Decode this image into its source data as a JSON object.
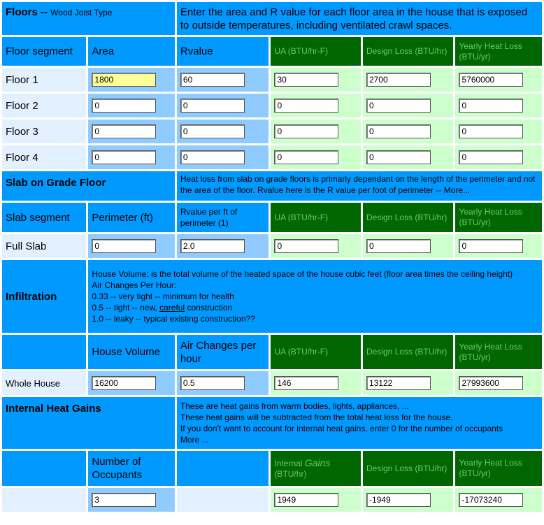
{
  "floors": {
    "title": "Floors --",
    "subtitle": "Wood Joist Type",
    "description": "Enter the area and R value for each floor area in the house that is exposed to outside temperatures, including ventilated crawl spaces.",
    "headers": [
      "Floor segment",
      "Area",
      "Rvalue",
      "UA (BTU/hr-F)",
      "Design Loss (BTU/hr)",
      "Yearly Heat Loss (BTU/yr)"
    ],
    "rows": [
      {
        "label": "Floor 1",
        "area": "1800",
        "rvalue": "60",
        "ua": "30",
        "design": "2700",
        "yearly": "5760000"
      },
      {
        "label": "Floor 2",
        "area": "0",
        "rvalue": "0",
        "ua": "0",
        "design": "0",
        "yearly": "0"
      },
      {
        "label": "Floor 3",
        "area": "0",
        "rvalue": "0",
        "ua": "0",
        "design": "0",
        "yearly": "0"
      },
      {
        "label": "Floor 4",
        "area": "0",
        "rvalue": "0",
        "ua": "0",
        "design": "0",
        "yearly": "0"
      }
    ]
  },
  "slab": {
    "title": "Slab on Grade Floor",
    "description": "Heat loss from slab on grade floors is primarly dependant on the length of the perimeter and not the area of the floor.  Rvalue here is the R value per foot of perimeter -- More...",
    "headers": [
      "Slab segment",
      "Perimeter (ft)",
      "Rvalue per ft of perimeter (1)",
      "UA (BTU/hr-F)",
      "Design Loss (BTU/hr)",
      "Yearly Heat Loss (BTU/yr)"
    ],
    "row": {
      "label": "Full Slab",
      "perimeter": "0",
      "rvalue": "2.0",
      "ua": "0",
      "design": "0",
      "yearly": "0"
    }
  },
  "infiltration": {
    "title": "Infiltration",
    "desc_line1": "House Volume: is the total volume of the heated space of the house cubic feet (floor area times the ceiling height)",
    "desc_line2": "Air Changes Per Hour:",
    "desc_line3": "0.33 -- very tight -- minimum for health",
    "desc_line4a": "0.5 -- tight --  new, ",
    "desc_line4_link": "careful",
    "desc_line4b": " construction",
    "desc_line5": "1.0 -- leaky -- typical existing construction??",
    "headers": [
      "House Volume",
      "Air Changes per hour",
      "UA (BTU/hr-F)",
      "Design Loss (BTU/hr)",
      "Yearly Heat Loss (BTU/yr)"
    ],
    "row": {
      "label": "Whole House",
      "volume": "16200",
      "ach": "0.5",
      "ua": "146",
      "design": "13122",
      "yearly": "27993600"
    }
  },
  "internal": {
    "title": "Internal Heat Gains",
    "desc_line1": "These are heat gains from warm bodies, lights, appliances, ...",
    "desc_line2": "These heat gains will be subtracted from the total heat loss for the house.",
    "desc_line3": "If you don't want to account for internal heat gains, enter 0 for the number of occupants",
    "desc_line4": "More ...",
    "headers": {
      "occupants": "Number of Occupants",
      "gains_a": "Internal ",
      "gains_b": "Gains",
      "gains_c": " (BTU/hr)",
      "design": "Design Loss (BTU/hr)",
      "yearly": "Yearly Heat Loss (BTU/yr)"
    },
    "row": {
      "occupants": "3",
      "gains": "1949",
      "design": "-1949",
      "yearly": "-17073240"
    }
  }
}
